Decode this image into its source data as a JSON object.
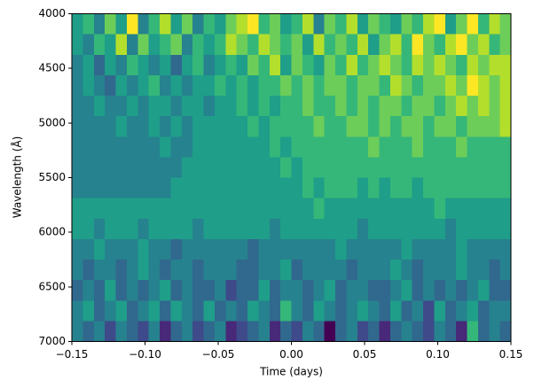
{
  "chart_data": {
    "type": "heatmap",
    "xlabel": "Time (days)",
    "ylabel": "Wavelength (Å)",
    "xlim": [
      -0.15,
      0.15
    ],
    "ylim": [
      7000,
      4000
    ],
    "colormap": "viridis",
    "xticks": [
      {
        "value": -0.15,
        "label": "−0.15"
      },
      {
        "value": -0.1,
        "label": "−0.10"
      },
      {
        "value": -0.05,
        "label": "−0.05"
      },
      {
        "value": 0,
        "label": "0.00"
      },
      {
        "value": 0.05,
        "label": "0.05"
      },
      {
        "value": 0.1,
        "label": "0.10"
      },
      {
        "value": 0.15,
        "label": "0.15"
      }
    ],
    "yticks": [
      4000,
      4500,
      5000,
      5500,
      6000,
      6500,
      7000
    ],
    "z": [
      [
        5,
        6,
        4,
        7,
        5,
        9,
        4,
        6,
        8,
        5,
        7,
        4,
        6,
        5,
        7,
        8,
        9,
        6,
        7,
        5,
        6,
        8,
        4,
        7,
        6,
        8,
        5,
        7,
        6,
        5,
        7,
        6,
        8,
        9,
        5,
        7,
        9,
        6,
        8,
        7
      ],
      [
        5,
        4,
        6,
        5,
        8,
        4,
        7,
        5,
        6,
        7,
        4,
        6,
        5,
        6,
        8,
        7,
        6,
        8,
        7,
        6,
        7,
        5,
        8,
        6,
        7,
        6,
        8,
        5,
        7,
        8,
        6,
        9,
        7,
        6,
        8,
        9,
        7,
        8,
        6,
        7
      ],
      [
        4,
        5,
        3,
        5,
        4,
        6,
        5,
        4,
        5,
        3,
        5,
        6,
        4,
        5,
        6,
        5,
        7,
        6,
        8,
        5,
        7,
        6,
        5,
        7,
        6,
        8,
        6,
        7,
        8,
        7,
        6,
        8,
        7,
        8,
        7,
        6,
        8,
        7,
        8,
        8
      ],
      [
        4,
        5,
        4,
        3,
        5,
        4,
        5,
        6,
        4,
        5,
        4,
        5,
        5,
        6,
        5,
        6,
        5,
        6,
        6,
        7,
        6,
        7,
        6,
        7,
        7,
        6,
        7,
        7,
        6,
        8,
        7,
        6,
        7,
        7,
        8,
        7,
        9,
        8,
        7,
        8
      ],
      [
        4,
        4,
        5,
        4,
        4,
        5,
        4,
        5,
        5,
        4,
        5,
        5,
        4,
        5,
        5,
        6,
        5,
        6,
        5,
        6,
        6,
        7,
        6,
        6,
        7,
        6,
        7,
        6,
        7,
        7,
        6,
        7,
        7,
        6,
        7,
        8,
        7,
        8,
        7,
        8
      ],
      [
        4,
        4,
        4,
        4,
        5,
        4,
        4,
        5,
        4,
        5,
        4,
        5,
        5,
        5,
        5,
        5,
        6,
        5,
        6,
        6,
        6,
        6,
        7,
        6,
        6,
        7,
        7,
        6,
        7,
        6,
        7,
        7,
        6,
        7,
        7,
        6,
        7,
        7,
        7,
        8
      ],
      [
        4,
        4,
        4,
        4,
        4,
        4,
        4,
        4,
        5,
        4,
        4,
        5,
        5,
        5,
        5,
        5,
        5,
        5,
        6,
        5,
        6,
        6,
        6,
        6,
        6,
        6,
        6,
        7,
        6,
        6,
        6,
        7,
        6,
        6,
        6,
        7,
        6,
        6,
        6,
        6
      ],
      [
        4,
        4,
        4,
        4,
        4,
        4,
        4,
        4,
        4,
        4,
        5,
        5,
        5,
        5,
        5,
        5,
        5,
        5,
        5,
        6,
        5,
        6,
        6,
        6,
        6,
        6,
        6,
        6,
        6,
        6,
        6,
        6,
        6,
        6,
        6,
        6,
        6,
        6,
        6,
        6
      ],
      [
        4,
        4,
        4,
        4,
        4,
        4,
        4,
        4,
        4,
        5,
        5,
        5,
        5,
        5,
        5,
        5,
        5,
        5,
        5,
        5,
        5,
        6,
        5,
        6,
        6,
        6,
        5,
        6,
        5,
        6,
        6,
        5,
        6,
        6,
        6,
        6,
        6,
        6,
        6,
        6
      ],
      [
        5,
        5,
        5,
        5,
        5,
        5,
        5,
        5,
        5,
        5,
        5,
        5,
        5,
        5,
        5,
        5,
        5,
        5,
        5,
        5,
        5,
        5,
        6,
        5,
        5,
        5,
        5,
        5,
        5,
        5,
        5,
        5,
        5,
        6,
        5,
        5,
        5,
        5,
        5,
        5
      ],
      [
        5,
        5,
        4,
        5,
        5,
        5,
        4,
        5,
        5,
        5,
        5,
        4,
        5,
        5,
        5,
        5,
        5,
        5,
        4,
        5,
        5,
        5,
        5,
        5,
        5,
        5,
        4,
        5,
        5,
        5,
        5,
        5,
        5,
        5,
        4,
        5,
        5,
        5,
        5,
        5
      ],
      [
        4,
        4,
        5,
        4,
        4,
        4,
        5,
        4,
        4,
        3,
        4,
        4,
        4,
        4,
        4,
        4,
        3,
        4,
        4,
        4,
        4,
        4,
        4,
        4,
        5,
        4,
        4,
        4,
        4,
        4,
        5,
        4,
        4,
        4,
        4,
        5,
        4,
        4,
        4,
        4
      ],
      [
        4,
        3,
        4,
        4,
        3,
        4,
        5,
        4,
        3,
        4,
        4,
        3,
        4,
        4,
        4,
        3,
        3,
        4,
        4,
        5,
        3,
        4,
        4,
        4,
        4,
        3,
        4,
        4,
        4,
        5,
        4,
        3,
        4,
        4,
        4,
        5,
        4,
        4,
        3,
        4
      ],
      [
        3,
        4,
        3,
        5,
        3,
        4,
        3,
        4,
        5,
        3,
        4,
        3,
        3,
        4,
        2,
        3,
        3,
        5,
        3,
        4,
        4,
        3,
        4,
        5,
        3,
        4,
        4,
        3,
        3,
        4,
        5,
        3,
        4,
        3,
        4,
        3,
        4,
        5,
        3,
        3
      ],
      [
        4,
        5,
        3,
        4,
        5,
        3,
        4,
        5,
        3,
        5,
        4,
        3,
        5,
        3,
        4,
        3,
        5,
        4,
        3,
        6,
        4,
        3,
        5,
        4,
        3,
        4,
        5,
        4,
        3,
        5,
        3,
        4,
        2,
        5,
        3,
        4,
        5,
        3,
        4,
        4
      ],
      [
        4,
        3,
        4,
        2,
        4,
        3,
        2,
        4,
        1,
        3,
        4,
        2,
        3,
        4,
        1,
        2,
        3,
        4,
        1,
        3,
        2,
        4,
        3,
        0,
        3,
        4,
        2,
        3,
        1,
        3,
        4,
        3,
        2,
        4,
        3,
        1,
        6,
        3,
        4,
        3
      ]
    ]
  }
}
